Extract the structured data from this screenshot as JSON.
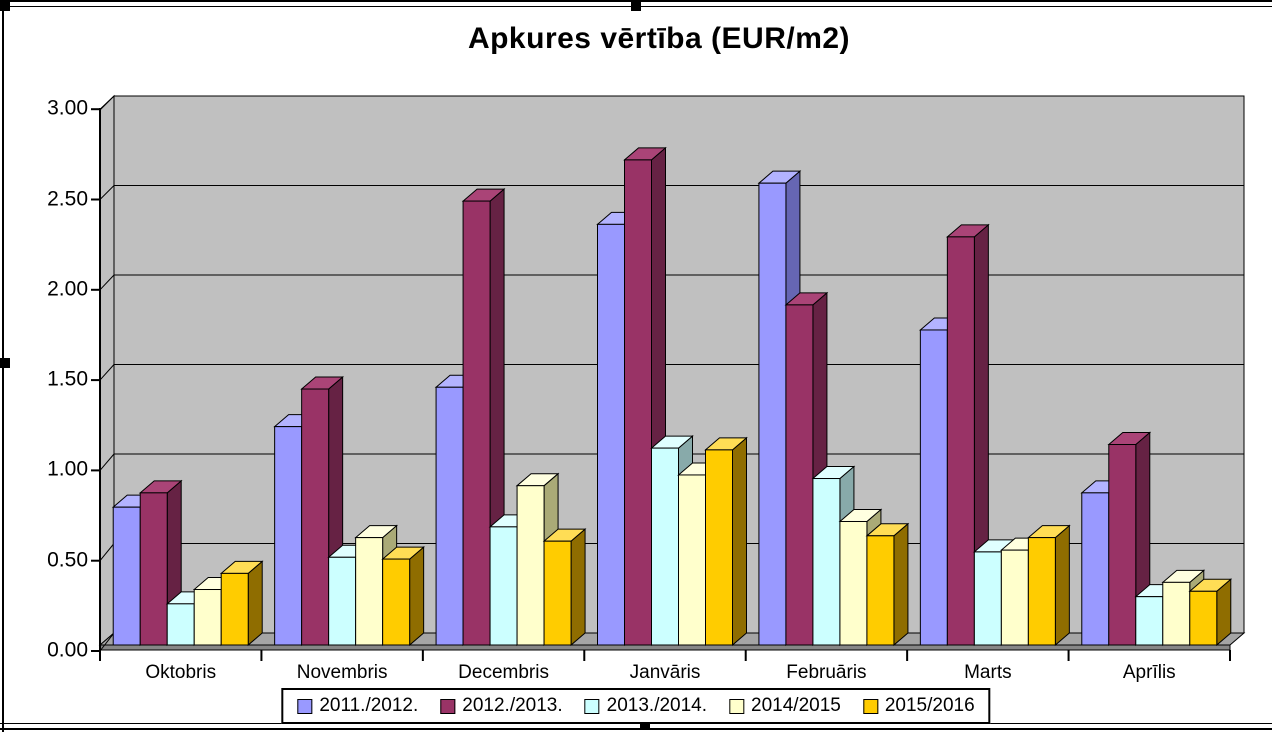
{
  "chart_data": {
    "type": "bar",
    "title": "Apkures vērtība (EUR/m2)",
    "categories": [
      "Oktobris",
      "Novembris",
      "Decembris",
      "Janvāris",
      "Februāris",
      "Marts",
      "Aprīlis"
    ],
    "series": [
      {
        "name": "2011./2012.",
        "color": "#9999FF",
        "side_color": "#6666B3",
        "top_color": "#B3B3FF",
        "values": [
          0.77,
          1.22,
          1.44,
          2.35,
          2.58,
          1.76,
          0.85
        ]
      },
      {
        "name": "2012./2013.",
        "color": "#993366",
        "side_color": "#662244",
        "top_color": "#AA4477",
        "values": [
          0.85,
          1.43,
          2.48,
          2.71,
          1.9,
          2.28,
          1.12
        ]
      },
      {
        "name": "2013./2014.",
        "color": "#CCFFFF",
        "side_color": "#88AAAA",
        "top_color": "#E0FFFF",
        "values": [
          0.23,
          0.49,
          0.66,
          1.1,
          0.93,
          0.52,
          0.27
        ]
      },
      {
        "name": "2014/2015",
        "color": "#FFFFCC",
        "side_color": "#AAAA77",
        "top_color": "#FFFFE0",
        "values": [
          0.31,
          0.6,
          0.89,
          0.95,
          0.69,
          0.53,
          0.35
        ]
      },
      {
        "name": "2015/2016",
        "color": "#FFCC00",
        "side_color": "#8F6D00",
        "top_color": "#FFDD55",
        "values": [
          0.4,
          0.48,
          0.58,
          1.09,
          0.61,
          0.6,
          0.3
        ]
      }
    ],
    "xlabel": "",
    "ylabel": "",
    "ylim": [
      0,
      3
    ],
    "ytick_step": 0.5,
    "ytick_labels": [
      "0.00",
      "0.50",
      "1.00",
      "1.50",
      "2.00",
      "2.50",
      "3.00"
    ],
    "grid": true,
    "legend_position": "bottom",
    "colors": {
      "plot_bg": "#C0C0C0",
      "floor": "#A5A5A5",
      "floor_edge": "#878787",
      "gridline": "#000000",
      "text": "#000000",
      "background": "#FFFFFF"
    }
  }
}
